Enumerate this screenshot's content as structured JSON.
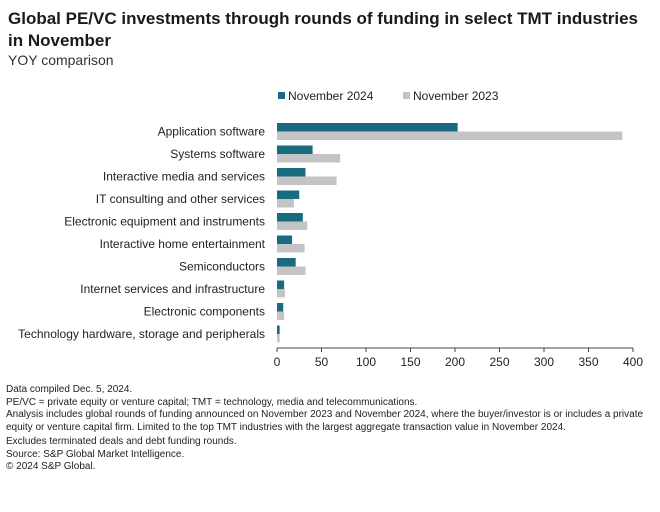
{
  "title": "Global PE/VC investments through rounds of funding in select TMT industries in November",
  "subtitle": "YOY comparison",
  "chart_data": {
    "type": "bar",
    "orientation": "horizontal",
    "categories": [
      "Application software",
      "Systems software",
      "Interactive media and services",
      "IT consulting and other services",
      "Electronic equipment and instruments",
      "Interactive home entertainment",
      "Semiconductors",
      "Internet services and infrastructure",
      "Electronic components",
      "Technology hardware, storage and peripherals"
    ],
    "series": [
      {
        "name": "November 2024",
        "color": "#1a6b7f",
        "values": [
          203,
          40,
          32,
          25,
          29,
          17,
          21,
          8,
          7,
          3
        ]
      },
      {
        "name": "November 2023",
        "color": "#c4c4c4",
        "values": [
          388,
          71,
          67,
          19,
          34,
          31,
          32,
          9,
          8,
          3
        ]
      }
    ],
    "xlim": [
      0,
      400
    ],
    "xticks": [
      "0",
      "50",
      "100",
      "150",
      "200",
      "250",
      "300",
      "350",
      "400"
    ],
    "grid": false,
    "legend_position": "top"
  },
  "notes": [
    "Data compiled Dec. 5, 2024.",
    "PE/VC = private equity or venture capital; TMT = technology, media and telecommunications.",
    "Analysis includes global rounds of funding announced on November 2023 and November 2024, where the buyer/investor is or includes a private equity or venture capital firm. Limited to the top TMT industries with the largest aggregate transaction value in November 2024.",
    "Excludes terminated deals and debt funding rounds.",
    "Source: S&P Global Market Intelligence.",
    "© 2024 S&P Global."
  ]
}
